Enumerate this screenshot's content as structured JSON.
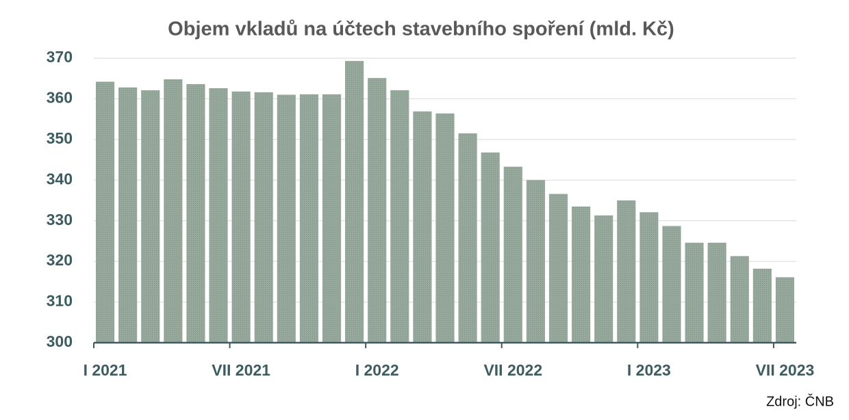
{
  "chart_data": {
    "type": "bar",
    "title": "Objem vkladů na účtech stavebního spoření (mld. Kč)",
    "source": "Zdroj: ČNB",
    "categories": [
      "I 2021",
      null,
      null,
      null,
      null,
      null,
      "VII 2021",
      null,
      null,
      null,
      null,
      null,
      "I 2022",
      null,
      null,
      null,
      null,
      null,
      "VII 2022",
      null,
      null,
      null,
      null,
      null,
      "I 2023",
      null,
      null,
      null,
      null,
      null,
      "VII 2023"
    ],
    "values": [
      364.2,
      362.8,
      362.1,
      364.8,
      363.6,
      362.6,
      361.8,
      361.6,
      361.0,
      361.1,
      361.1,
      369.3,
      365.1,
      362.1,
      356.9,
      356.4,
      351.5,
      346.8,
      343.3,
      340.0,
      336.6,
      333.5,
      331.3,
      335.0,
      332.1,
      328.7,
      324.6,
      324.6,
      321.3,
      318.2,
      316.1
    ],
    "color": "#97a99c",
    "ylim": [
      300,
      370
    ],
    "yticks": [
      300,
      310,
      320,
      330,
      340,
      350,
      360,
      370
    ],
    "grid": true
  }
}
